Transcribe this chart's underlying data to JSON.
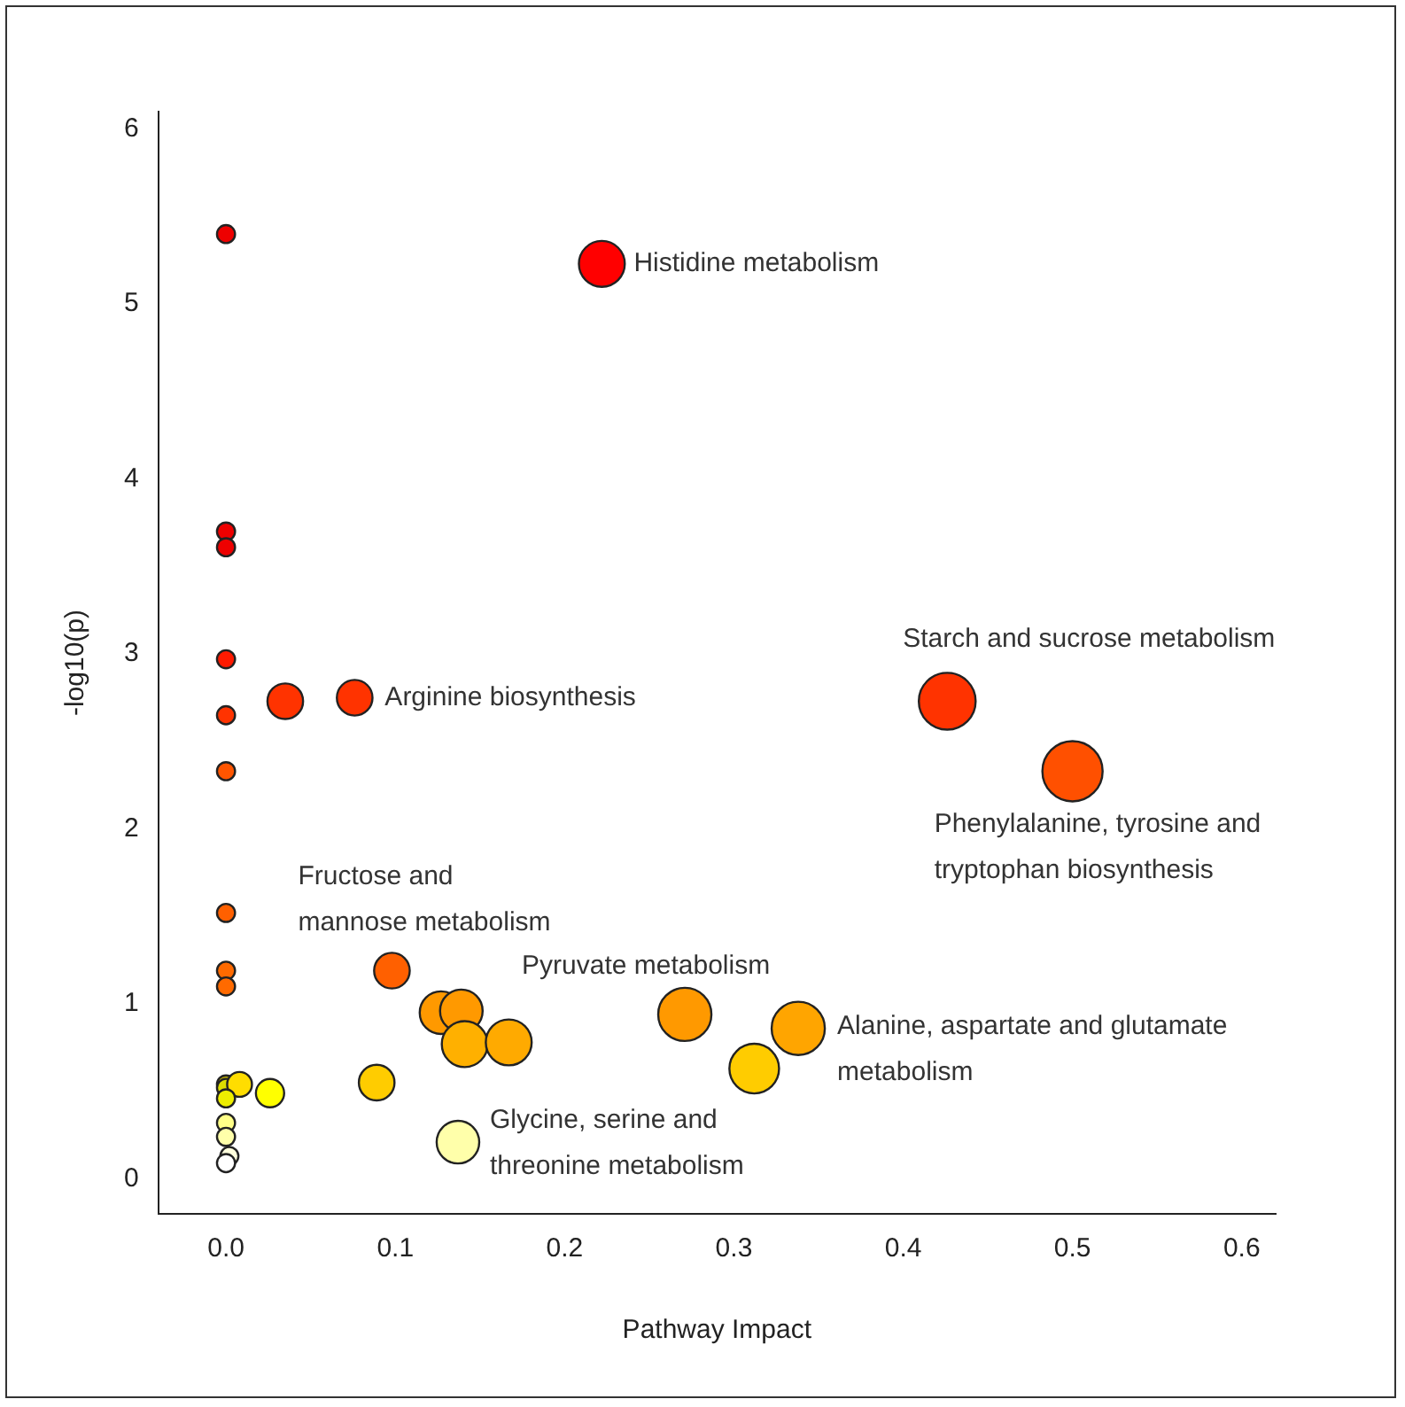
{
  "chart_data": {
    "type": "bubble",
    "xlabel": "Pathway Impact",
    "ylabel": "-log10(p)",
    "x": [
      0,
      0.222,
      0,
      0,
      0,
      0,
      0,
      0.035,
      0.076,
      0.426,
      0.5,
      0,
      0,
      0,
      0.098,
      0.127,
      0.139,
      0.141,
      0.167,
      0.271,
      0.338,
      0.312,
      0.089,
      0.137,
      0,
      0,
      0.008,
      0,
      0.026,
      0,
      0,
      0.002,
      0
    ],
    "values": [
      5.4,
      5.23,
      3.7,
      3.61,
      2.97,
      2.65,
      2.33,
      2.73,
      2.75,
      2.73,
      2.33,
      1.52,
      1.19,
      1.1,
      1.19,
      0.95,
      0.96,
      0.77,
      0.78,
      0.94,
      0.86,
      0.63,
      0.55,
      0.21,
      0.54,
      0.52,
      0.54,
      0.46,
      0.49,
      0.32,
      0.24,
      0.13,
      0.09
    ],
    "sizes": [
      0.09,
      0.58,
      0.09,
      0.09,
      0.09,
      0.09,
      0.09,
      0.35,
      0.35,
      0.89,
      1,
      0.09,
      0.09,
      0.09,
      0.35,
      0.5,
      0.5,
      0.58,
      0.58,
      0.78,
      0.78,
      0.68,
      0.35,
      0.5,
      0.09,
      0.09,
      0.17,
      0.09,
      0.22,
      0.09,
      0.09,
      0.09,
      0.09
    ],
    "colors": [
      "#ee0000",
      "#ff0000",
      "#ee0000",
      "#ee0000",
      "#ff1a00",
      "#ff3300",
      "#ff5500",
      "#ff3300",
      "#ff3300",
      "#ff3300",
      "#ff5000",
      "#ff6000",
      "#ff6a00",
      "#ff6a00",
      "#ff6000",
      "#ff9900",
      "#ff9900",
      "#ffb000",
      "#ffaa00",
      "#ff9900",
      "#ffa500",
      "#ffcc00",
      "#ffcc00",
      "#ffffaa",
      "#ccbb00",
      "#dddd00",
      "#ffdd00",
      "#eeee00",
      "#ffff00",
      "#ffff88",
      "#ffffaa",
      "#ffffdd",
      "#ffffff"
    ],
    "xlim": [
      -0.04,
      0.62
    ],
    "ylim": [
      -0.2,
      6.1
    ],
    "xticks": [
      {
        "value": 0,
        "label": "0.0"
      },
      0.1,
      0.2,
      0.3,
      0.4,
      0.5,
      0.6
    ],
    "yticks": [
      0,
      1,
      2,
      3,
      4,
      5,
      6
    ],
    "grid": false,
    "legend": false,
    "marker": "circle",
    "annotations": [
      {
        "text": "Histidine metabolism",
        "x": 0.222,
        "y": 5.23
      },
      {
        "text": "Arginine biosynthesis",
        "x": 0.076,
        "y": 2.75
      },
      {
        "text": "Starch and sucrose metabolism",
        "x": 0.426,
        "y": 2.73
      },
      {
        "text": "Phenylalanine, tyrosine and\ntryptophan biosynthesis",
        "x": 0.5,
        "y": 2.33
      },
      {
        "text": "Fructose and\nmannose metabolism",
        "x": 0.098,
        "y": 1.19
      },
      {
        "text": "Pyruvate metabolism",
        "x": 0.271,
        "y": 0.94
      },
      {
        "text": "Alanine, aspartate and glutamate\nmetabolism",
        "x": 0.338,
        "y": 0.86
      },
      {
        "text": "Glycine, serine and\nthreonine metabolism",
        "x": 0.137,
        "y": 0.21
      }
    ]
  }
}
